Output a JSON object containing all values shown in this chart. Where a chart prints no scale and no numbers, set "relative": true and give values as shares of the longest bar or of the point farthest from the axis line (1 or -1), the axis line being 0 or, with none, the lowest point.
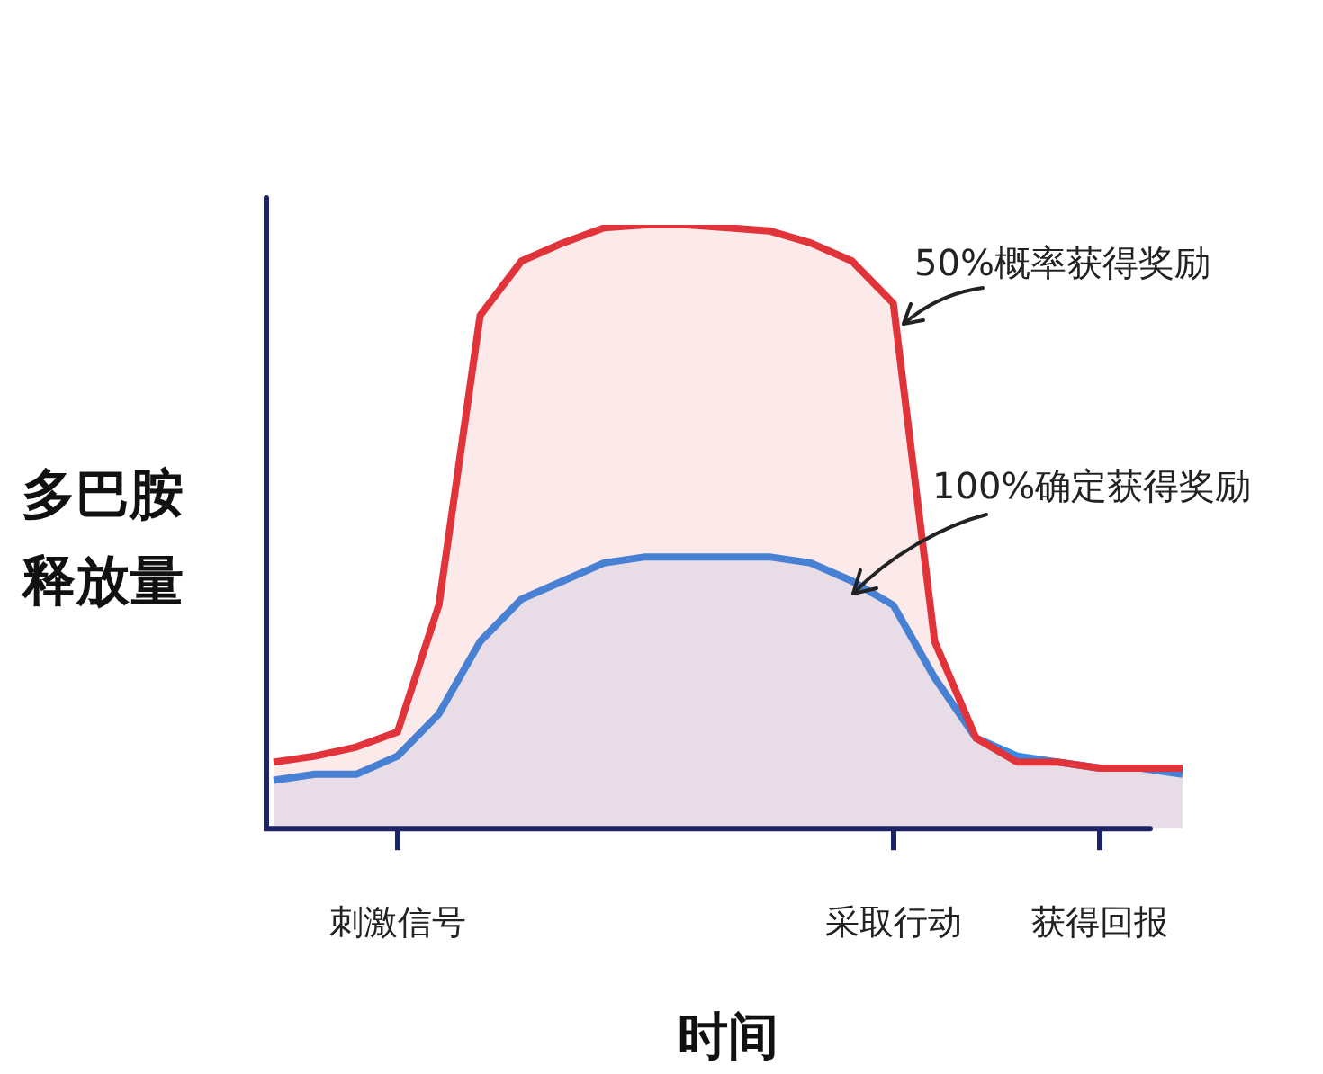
{
  "chart_data": {
    "type": "area",
    "relative": true,
    "xlabel": "时间",
    "ylabel": "多巴胺释放量",
    "categories": [
      null,
      null,
      null,
      "刺激信号",
      null,
      null,
      null,
      null,
      null,
      null,
      null,
      null,
      null,
      null,
      null,
      "采取行动",
      null,
      null,
      null,
      null,
      "获得回报",
      null,
      null
    ],
    "series": [
      {
        "color": "#e0343a",
        "values": [
          0.11,
          0.12,
          0.135,
          0.16,
          0.37,
          0.85,
          0.94,
          0.97,
          0.995,
          1,
          1,
          0.995,
          0.99,
          0.97,
          0.94,
          0.87,
          0.31,
          0.15,
          0.11,
          0.11,
          0.1,
          0.1,
          0.1
        ]
      },
      {
        "color": "#3589e8",
        "values": [
          0.08,
          0.09,
          0.09,
          0.12,
          0.19,
          0.31,
          0.38,
          0.41,
          0.44,
          0.45,
          0.45,
          0.45,
          0.45,
          0.44,
          0.41,
          0.37,
          0.25,
          0.15,
          0.12,
          0.11,
          0.1,
          0.1,
          0.09
        ]
      }
    ],
    "annotations": [
      "50%概率获得奖励",
      "100%确定获得奖励"
    ],
    "legend": false,
    "grid": false
  }
}
